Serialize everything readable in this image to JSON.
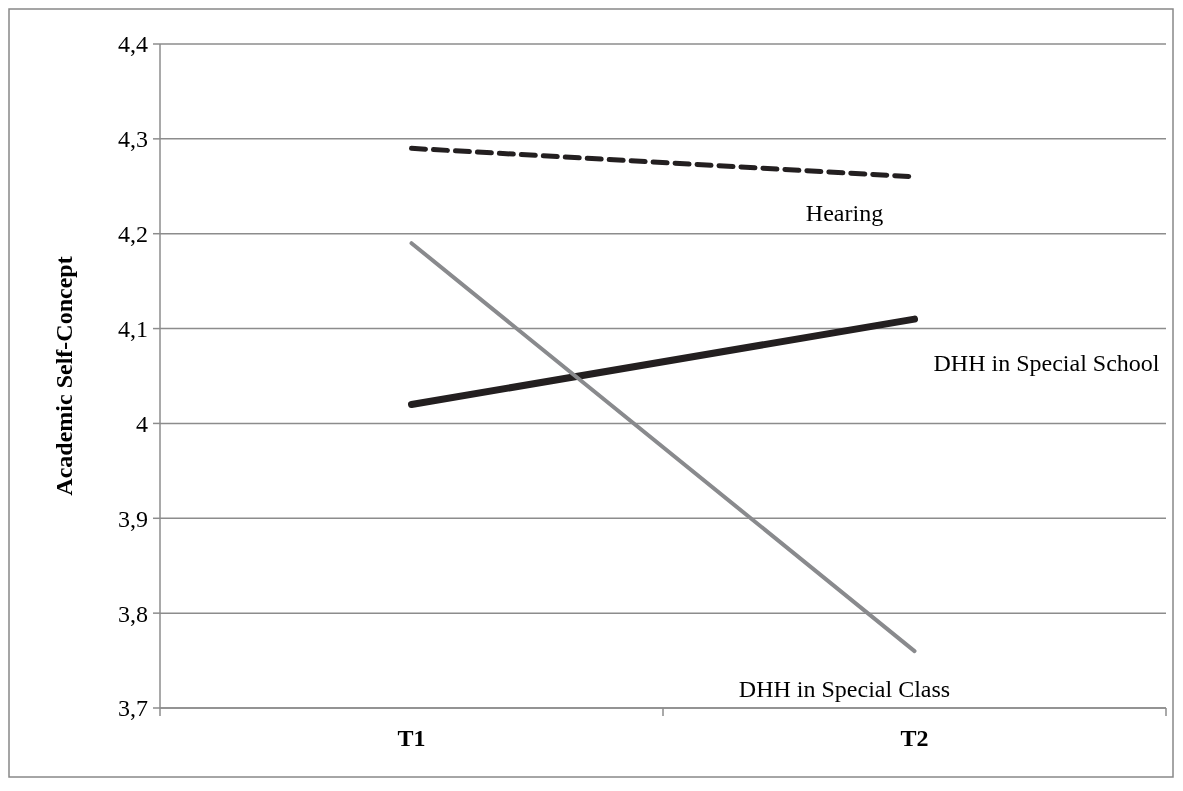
{
  "chart_data": {
    "type": "line",
    "ylabel": "Academic Self-Concept",
    "categories": [
      "T1",
      "T2"
    ],
    "ylim": [
      3.7,
      4.4
    ],
    "yticks": [
      {
        "value": 3.7,
        "label": "3,7"
      },
      {
        "value": 3.8,
        "label": "3,8"
      },
      {
        "value": 3.9,
        "label": "3,9"
      },
      {
        "value": 4,
        "label": "4"
      },
      {
        "value": 4.1,
        "label": "4,1"
      },
      {
        "value": 4.2,
        "label": "4,2"
      },
      {
        "value": 4.3,
        "label": "4,3"
      },
      {
        "value": 4.4,
        "label": "4,4"
      }
    ],
    "grid": "y",
    "marker": "none",
    "series": [
      {
        "name": "Hearing",
        "color": "#231f20",
        "values": [
          4.29,
          4.26
        ],
        "line_style": "dashed"
      },
      {
        "name": "DHH in Special School",
        "color": "#231f20",
        "values": [
          4.02,
          4.11
        ],
        "line_style": "solid"
      },
      {
        "name": "DHH in Special Class",
        "color": "#898a8d",
        "values": [
          4.19,
          3.76
        ],
        "line_style": "solid"
      }
    ]
  }
}
